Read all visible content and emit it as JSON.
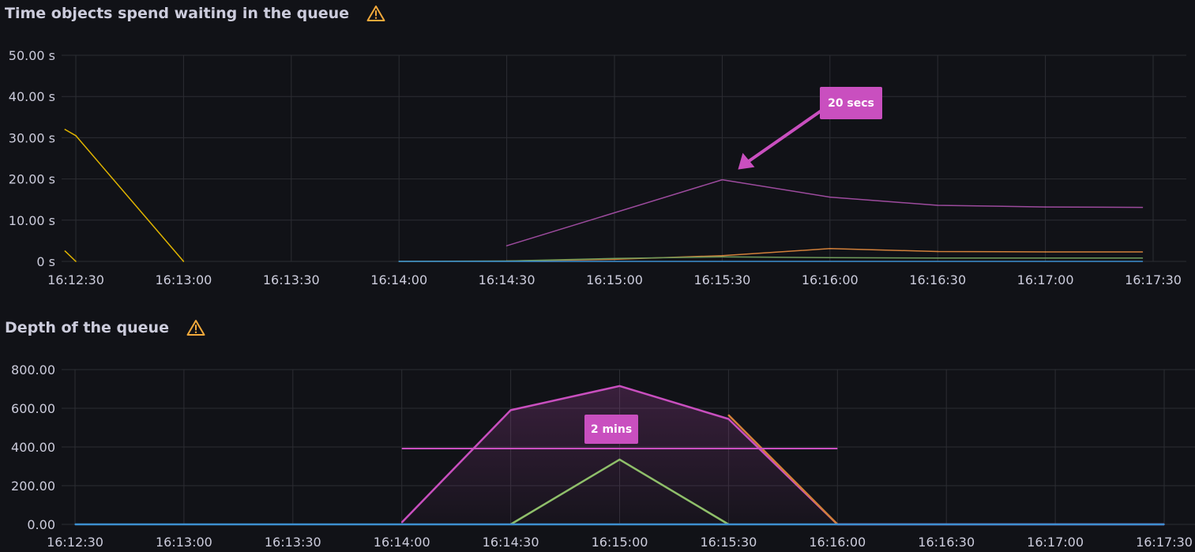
{
  "colors": {
    "background": "#111217",
    "grid": "#2c2d33",
    "text": "#ccccdc",
    "warning": "#f2a93b",
    "annotation": "#c94fbf"
  },
  "panels": [
    {
      "title": "Time objects spend waiting in the queue",
      "warning_icon": "warning-icon",
      "annotation": {
        "label": "20 secs",
        "x": "16:15:30",
        "y": 20
      }
    },
    {
      "title": "Depth of the queue",
      "warning_icon": "warning-icon",
      "annotation": {
        "label": "2 mins",
        "x_start": "16:14:00",
        "x_end": "16:16:00"
      }
    }
  ],
  "chart_data": [
    {
      "type": "line",
      "title": "Time objects spend waiting in the queue",
      "x_ticks": [
        "16:12:30",
        "16:13:00",
        "16:13:30",
        "16:14:00",
        "16:14:30",
        "16:15:00",
        "16:15:30",
        "16:16:00",
        "16:16:30",
        "16:17:00",
        "16:17:30"
      ],
      "y_ticks": [
        "0 s",
        "10.00 s",
        "20.00 s",
        "30.00 s",
        "40.00 s",
        "50.00 s"
      ],
      "ylim": [
        0,
        50
      ],
      "xlim": [
        "16:12:30",
        "16:17:30"
      ],
      "grid": true,
      "series": [
        {
          "color": "#e0b400",
          "points": [
            [
              "16:12:27",
              32
            ],
            [
              "16:12:30",
              30.5
            ],
            [
              "16:13:00",
              0
            ]
          ]
        },
        {
          "color": "#e0b400",
          "points": [
            [
              "16:12:27",
              2.5
            ],
            [
              "16:12:30",
              0
            ]
          ]
        },
        {
          "color": "#9d4b9e",
          "points": [
            [
              "16:14:30",
              3.8
            ],
            [
              "16:15:30",
              19.8
            ],
            [
              "16:16:00",
              15.6
            ],
            [
              "16:16:30",
              13.6
            ],
            [
              "16:17:00",
              13.2
            ],
            [
              "16:17:27",
              13.1
            ]
          ]
        },
        {
          "color": "#d2803a",
          "points": [
            [
              "16:14:30",
              0.1
            ],
            [
              "16:15:00",
              0.5
            ],
            [
              "16:15:30",
              1.4
            ],
            [
              "16:16:00",
              3.1
            ],
            [
              "16:16:30",
              2.4
            ],
            [
              "16:17:00",
              2.3
            ],
            [
              "16:17:27",
              2.3
            ]
          ]
        },
        {
          "color": "#6e9a5a",
          "points": [
            [
              "16:14:00",
              0
            ],
            [
              "16:14:30",
              0.1
            ],
            [
              "16:15:00",
              0.7
            ],
            [
              "16:15:30",
              1.1
            ],
            [
              "16:16:00",
              0.9
            ],
            [
              "16:16:30",
              0.8
            ],
            [
              "16:17:27",
              0.8
            ]
          ]
        },
        {
          "color": "#3d8fd0",
          "points": [
            [
              "16:14:00",
              0
            ],
            [
              "16:17:27",
              0
            ]
          ]
        }
      ]
    },
    {
      "type": "area",
      "title": "Depth of the queue",
      "x_ticks": [
        "16:12:30",
        "16:13:00",
        "16:13:30",
        "16:14:00",
        "16:14:30",
        "16:15:00",
        "16:15:30",
        "16:16:00",
        "16:16:30",
        "16:17:00",
        "16:17:30"
      ],
      "y_ticks": [
        "0.00",
        "200.00",
        "400.00",
        "600.00",
        "800.00"
      ],
      "ylim": [
        0,
        800
      ],
      "xlim": [
        "16:12:30",
        "16:17:30"
      ],
      "grid": true,
      "series": [
        {
          "color": "#c94fbf",
          "fill": true,
          "points": [
            [
              "16:14:00",
              10
            ],
            [
              "16:14:30",
              590
            ],
            [
              "16:15:00",
              715
            ],
            [
              "16:15:30",
              545
            ],
            [
              "16:16:00",
              0
            ],
            [
              "16:17:30",
              0
            ]
          ]
        },
        {
          "color": "#d2803a",
          "points": [
            [
              "16:15:30",
              565
            ],
            [
              "16:16:00",
              0
            ]
          ]
        },
        {
          "color": "#8fbf6a",
          "points": [
            [
              "16:14:30",
              0
            ],
            [
              "16:15:00",
              335
            ],
            [
              "16:15:30",
              0
            ]
          ]
        },
        {
          "color": "#3d8fd0",
          "points": [
            [
              "16:12:30",
              0
            ],
            [
              "16:17:30",
              0
            ]
          ]
        }
      ]
    }
  ]
}
